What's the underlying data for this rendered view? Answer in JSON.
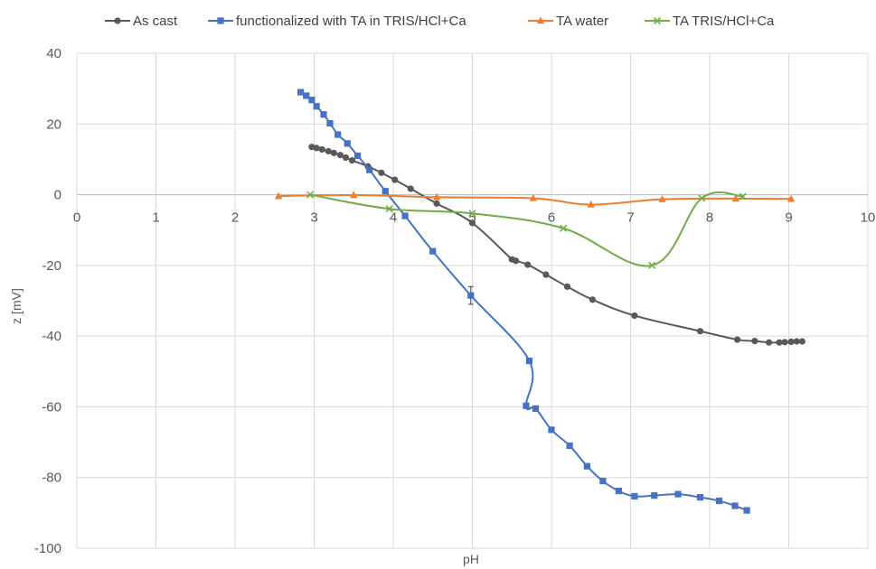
{
  "chart_data": {
    "type": "scatter",
    "xlabel": "pH",
    "ylabel": "z [mV]",
    "xlim": [
      0,
      10
    ],
    "ylim": [
      -100,
      40
    ],
    "xticks": [
      "0",
      "1",
      "2",
      "3",
      "4",
      "5",
      "6",
      "7",
      "8",
      "9",
      "10"
    ],
    "yticks": [
      "40",
      "20",
      "0",
      "-20",
      "-40",
      "-60",
      "-80",
      "-100"
    ],
    "grid": true,
    "legend_position": "top",
    "series": [
      {
        "name": "As cast",
        "color": "#595959",
        "marker": "circle",
        "x": [
          2.97,
          3.03,
          3.1,
          3.18,
          3.25,
          3.33,
          3.4,
          3.48,
          3.68,
          3.85,
          4.02,
          4.22,
          4.55,
          5.0,
          5.5,
          5.55,
          5.7,
          5.93,
          6.2,
          6.52,
          7.05,
          7.88,
          8.35,
          8.57,
          8.75,
          8.88,
          8.95,
          9.03,
          9.1,
          9.17
        ],
        "y": [
          13.5,
          13.2,
          12.8,
          12.3,
          11.8,
          11.2,
          10.5,
          9.7,
          8.0,
          6.2,
          4.2,
          1.7,
          -2.5,
          -8.0,
          -18.3,
          -18.7,
          -19.8,
          -22.6,
          -26.0,
          -29.7,
          -34.2,
          -38.6,
          -41.0,
          -41.4,
          -41.8,
          -41.8,
          -41.7,
          -41.6,
          -41.5,
          -41.5
        ]
      },
      {
        "name": "functionalized with TA in TRIS/HCl+Ca",
        "color": "#4472C4",
        "marker": "square",
        "x": [
          2.83,
          2.9,
          2.97,
          3.03,
          3.12,
          3.2,
          3.3,
          3.42,
          3.55,
          3.7,
          3.9,
          4.15,
          4.5,
          4.98,
          5.72,
          5.68,
          5.8,
          6.0,
          6.23,
          6.45,
          6.65,
          6.85,
          7.05,
          7.3,
          7.6,
          7.88,
          8.12,
          8.32,
          8.47
        ],
        "y": [
          29.0,
          28.0,
          26.8,
          25.0,
          22.7,
          20.2,
          17.0,
          14.5,
          11.0,
          7.0,
          1.0,
          -6.0,
          -16.0,
          -28.5,
          -47.0,
          -59.7,
          -60.5,
          -66.5,
          -71.0,
          -76.8,
          -81.0,
          -83.8,
          -85.3,
          -85.1,
          -84.7,
          -85.6,
          -86.6,
          -88.0,
          -89.3
        ],
        "error_bars": [
          {
            "x": 4.98,
            "y": -28.5,
            "err": 2.5
          }
        ]
      },
      {
        "name": "TA water",
        "color": "#ED7D31",
        "marker": "triangle",
        "x": [
          2.55,
          3.5,
          4.55,
          5.77,
          6.5,
          7.4,
          8.33,
          9.03
        ],
        "y": [
          -0.4,
          -0.1,
          -0.7,
          -1.0,
          -2.8,
          -1.3,
          -1.1,
          -1.2
        ]
      },
      {
        "name": "TA TRIS/HCl+Ca",
        "color": "#70AD47",
        "marker": "x",
        "x": [
          2.95,
          3.95,
          5.0,
          6.15,
          7.27,
          7.9,
          8.42
        ],
        "y": [
          0.0,
          -4.0,
          -5.3,
          -9.5,
          -20.0,
          -1.0,
          -0.5
        ]
      }
    ]
  }
}
